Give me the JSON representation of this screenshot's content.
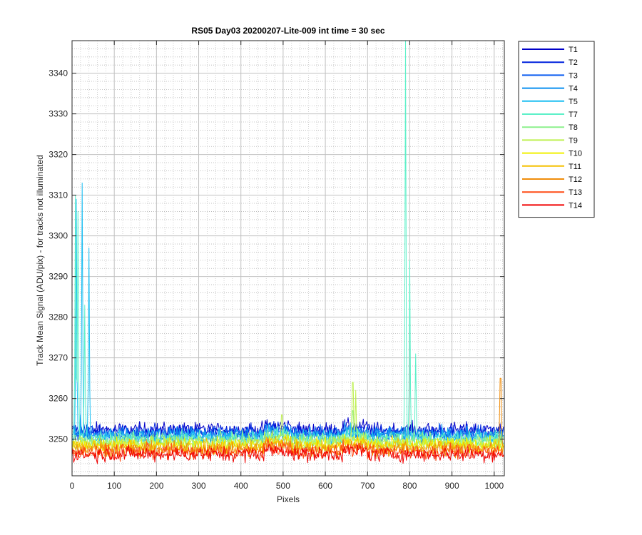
{
  "chart_data": {
    "type": "line",
    "title": "RS05 Day03 20200207-Lite-009 int time = 30 sec",
    "xlabel": "Pixels",
    "ylabel": "Track Mean Signal (ADU/pix) - for tracks not illuminated",
    "xlim": [
      0,
      1024
    ],
    "ylim": [
      3241,
      3348
    ],
    "xticks": [
      0,
      100,
      200,
      300,
      400,
      500,
      600,
      700,
      800,
      900,
      1000
    ],
    "yticks": [
      3250,
      3260,
      3270,
      3280,
      3290,
      3300,
      3310,
      3320,
      3330,
      3340
    ],
    "grid": true,
    "minor_grid": true,
    "legend_position": "outside-top-right",
    "series": [
      {
        "name": "T1",
        "color": "#0000c8",
        "base": 3252.3,
        "noise": 1.3,
        "spikes": []
      },
      {
        "name": "T2",
        "color": "#0022dd",
        "base": 3251.8,
        "noise": 1.3,
        "spikes": []
      },
      {
        "name": "T3",
        "color": "#0b5cf0",
        "base": 3251.3,
        "noise": 1.3,
        "spikes": []
      },
      {
        "name": "T4",
        "color": "#0a8ff0",
        "base": 3251.0,
        "noise": 1.4,
        "spikes": [
          [
            20,
            3256
          ]
        ]
      },
      {
        "name": "T5",
        "color": "#1cbef2",
        "base": 3250.6,
        "noise": 1.4,
        "spikes": [
          [
            10,
            3309
          ],
          [
            24,
            3313
          ],
          [
            40,
            3297
          ]
        ]
      },
      {
        "name": "T7",
        "color": "#5cf0c8",
        "base": 3250.2,
        "noise": 1.3,
        "spikes": [
          [
            8,
            3310
          ],
          [
            14,
            3306
          ],
          [
            30,
            3283
          ],
          [
            790,
            3348
          ],
          [
            800,
            3294
          ],
          [
            814,
            3271
          ]
        ]
      },
      {
        "name": "T8",
        "color": "#8cf08c",
        "base": 3249.6,
        "noise": 1.3,
        "spikes": [
          [
            665,
            3257
          ]
        ]
      },
      {
        "name": "T9",
        "color": "#bef050",
        "base": 3249.1,
        "noise": 1.3,
        "spikes": [
          [
            497,
            3256
          ],
          [
            665,
            3264
          ],
          [
            672,
            3262
          ]
        ]
      },
      {
        "name": "T10",
        "color": "#f0f000",
        "base": 3248.6,
        "noise": 1.3,
        "spikes": []
      },
      {
        "name": "T11",
        "color": "#f5c000",
        "base": 3248.1,
        "noise": 1.3,
        "spikes": []
      },
      {
        "name": "T12",
        "color": "#f08c0a",
        "base": 3247.5,
        "noise": 1.3,
        "spikes": [
          [
            1015,
            3265
          ]
        ]
      },
      {
        "name": "T13",
        "color": "#ff4a14",
        "base": 3246.9,
        "noise": 1.3,
        "spikes": []
      },
      {
        "name": "T14",
        "color": "#f00000",
        "base": 3246.3,
        "noise": 1.3,
        "spikes": []
      }
    ]
  }
}
